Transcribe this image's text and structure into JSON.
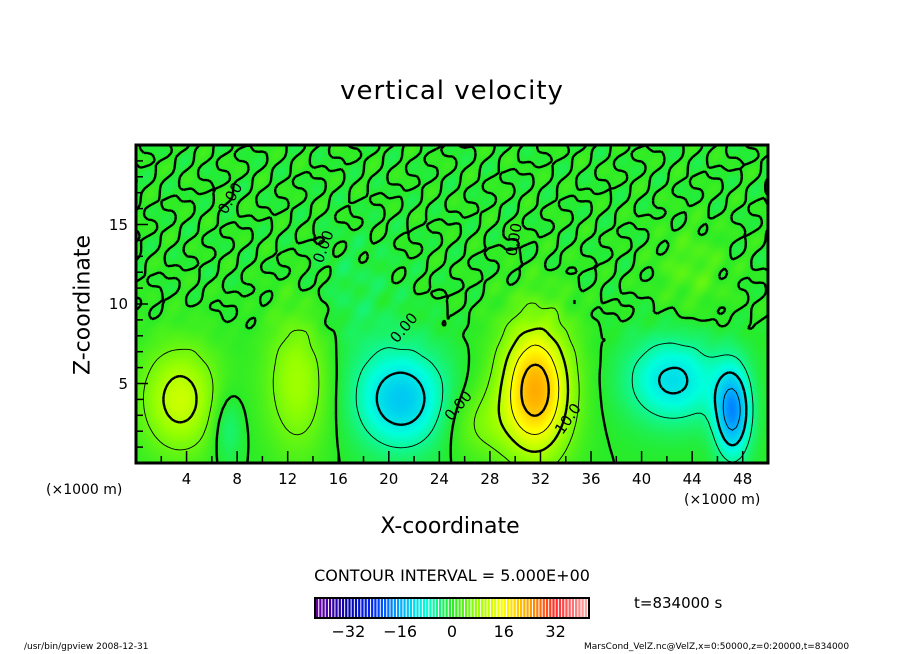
{
  "chart_data": {
    "type": "heatmap",
    "title": "vertical velocity",
    "xlabel": "X-coordinate",
    "ylabel": "Z-coordinate",
    "x_unit": "(×1000 m)",
    "xlim": [
      0,
      50
    ],
    "ylim": [
      0,
      20
    ],
    "x_ticks": [
      4,
      8,
      12,
      16,
      20,
      24,
      28,
      32,
      36,
      40,
      44,
      48
    ],
    "y_ticks": [
      5,
      10,
      15
    ],
    "contour_interval_label": "CONTOUR INTERVAL = 5.000E+00",
    "contour_interval": 5,
    "contour_labels": [
      "0.00",
      "0.00",
      "0.00",
      "0.00",
      "0.00",
      "10.0"
    ],
    "colorbar": {
      "min": -42,
      "max": 42,
      "ticks": [
        -32,
        -16,
        0,
        16,
        32
      ]
    },
    "time_label": "t=834000 s",
    "field_components": [
      {
        "x": 3.5,
        "z": 4.0,
        "amp": 12,
        "sx": 2.2,
        "sz": 2.4
      },
      {
        "x": 7.2,
        "z": 2.3,
        "amp": -5,
        "sx": 0.9,
        "sz": 1.6
      },
      {
        "x": 12.8,
        "z": 5.2,
        "amp": 9,
        "sx": 1.8,
        "sz": 3.2
      },
      {
        "x": 21.0,
        "z": 4.0,
        "amp": -13,
        "sx": 2.6,
        "sz": 2.2
      },
      {
        "x": 27.0,
        "z": 2.5,
        "amp": 5,
        "sx": 1.8,
        "sz": 1.6
      },
      {
        "x": 31.6,
        "z": 4.6,
        "amp": 23,
        "sx": 2.0,
        "sz": 3.0
      },
      {
        "x": 42.5,
        "z": 5.2,
        "amp": -11,
        "sx": 2.6,
        "sz": 1.9
      },
      {
        "x": 47.2,
        "z": 3.2,
        "amp": -17,
        "sx": 1.0,
        "sz": 2.0
      },
      {
        "x": 44.0,
        "z": 12.0,
        "amp": 3,
        "sx": 2.0,
        "sz": 2.0
      },
      {
        "x": 17.0,
        "z": 10.0,
        "amp": -2,
        "sx": 3.0,
        "sz": 3.0
      }
    ]
  },
  "footer": {
    "left": "/usr/bin/gpview   2008-12-31",
    "right": "MarsCond_VelZ.nc@VelZ,x=0:50000,z=0:20000,t=834000"
  }
}
